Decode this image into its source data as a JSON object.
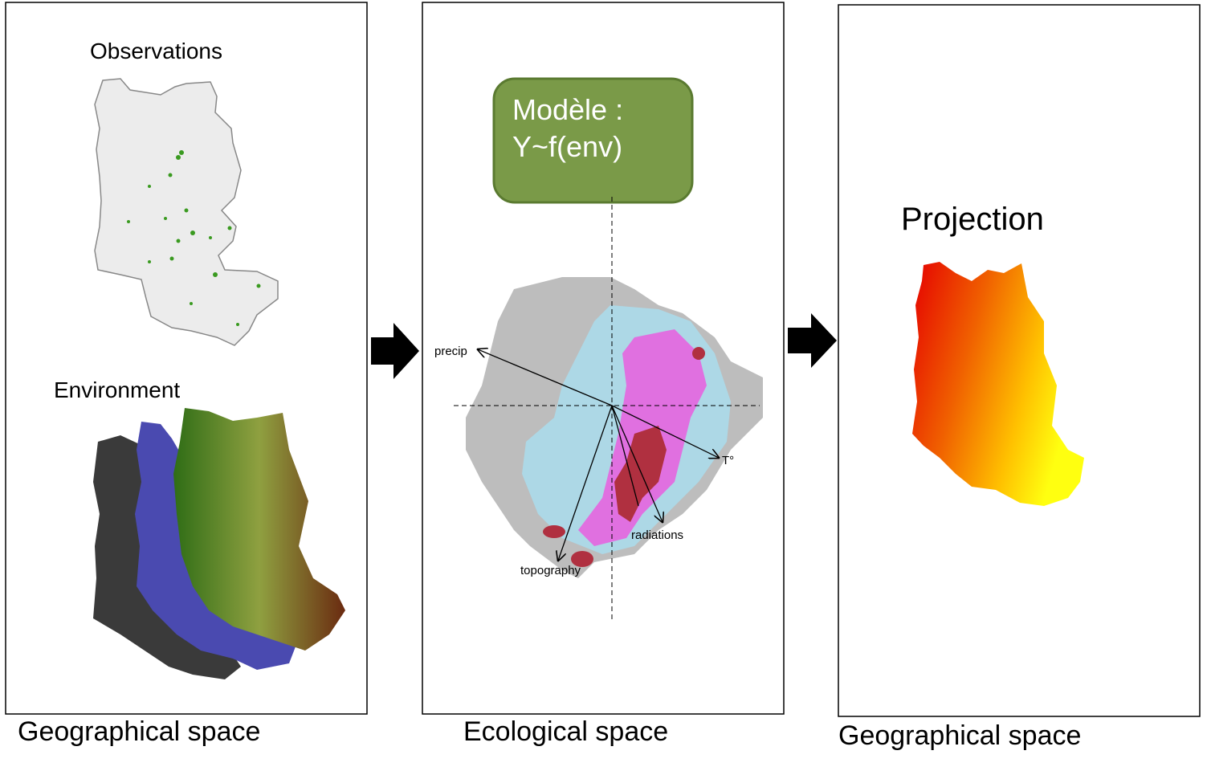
{
  "panels": [
    {
      "sections": [
        "Observations",
        "Environment"
      ],
      "caption": "Geographical space"
    },
    {
      "model": {
        "lines": [
          "Modèle :",
          "Y~f(env)"
        ]
      },
      "axes": [
        "precip",
        "T°",
        "radiations",
        "topography"
      ],
      "caption": "Ecological space"
    },
    {
      "title": "Projection",
      "caption": "Geographical space"
    }
  ]
}
